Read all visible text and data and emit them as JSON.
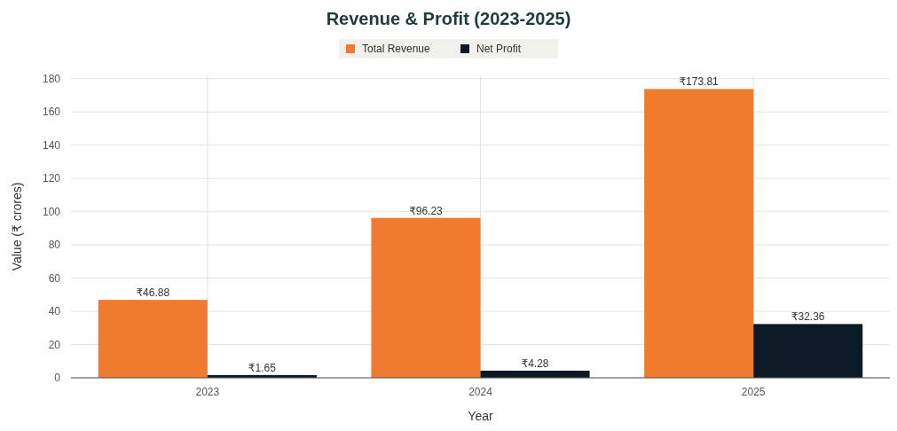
{
  "chart_data": {
    "type": "bar",
    "title": "Revenue & Profit (2023-2025)",
    "xlabel": "Year",
    "ylabel": "Value (₹ crores)",
    "categories": [
      "2023",
      "2024",
      "2025"
    ],
    "series": [
      {
        "name": "Total Revenue",
        "color": "#f07a2d",
        "values": [
          46.88,
          96.23,
          173.81
        ],
        "value_labels": [
          "₹46.88",
          "₹96.23",
          "₹173.81"
        ]
      },
      {
        "name": "Net Profit",
        "color": "#0c1a27",
        "values": [
          1.65,
          4.28,
          32.36
        ],
        "value_labels": [
          "₹1.65",
          "₹4.28",
          "₹32.36"
        ]
      }
    ],
    "ylim": [
      0,
      182
    ],
    "yticks": [
      0,
      20,
      40,
      60,
      80,
      100,
      120,
      140,
      160,
      180
    ],
    "grid": true,
    "legend": "top"
  }
}
